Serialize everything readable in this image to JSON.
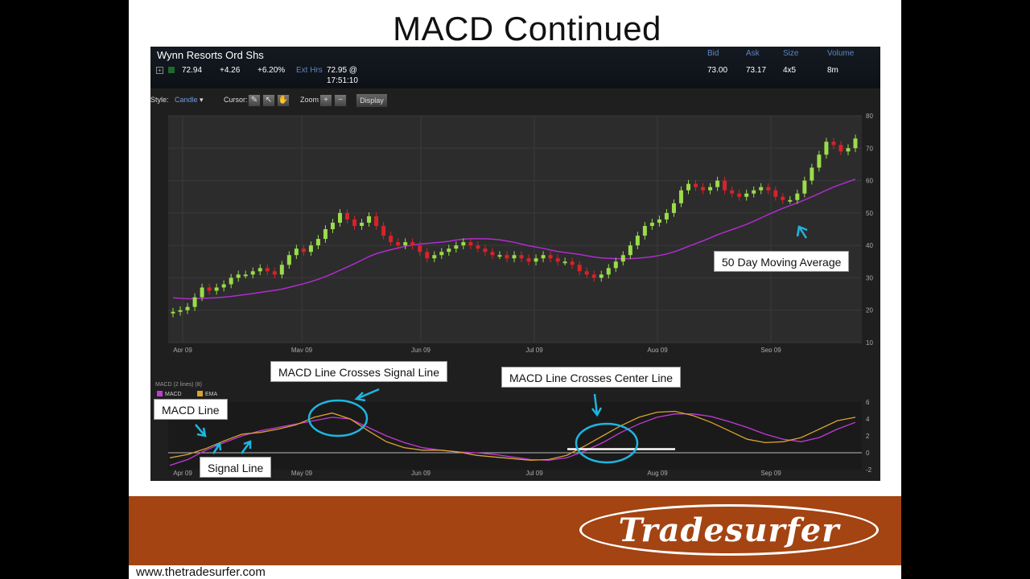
{
  "slide": {
    "title": "MACD Continued",
    "url": "www.thetradesurfer.com",
    "logo_text": "Tradesurfer"
  },
  "quote": {
    "name": "Wynn Resorts Ord Shs",
    "last": "72.94",
    "change": "+4.26",
    "change_pct": "+6.20%",
    "ext_label": "Ext Hrs",
    "ext_price": "72.95 @",
    "ext_time": "17:51:10",
    "headers": {
      "bid": "Bid",
      "ask": "Ask",
      "size": "Size",
      "volume": "Volume"
    },
    "values": {
      "bid": "73.00",
      "ask": "73.17",
      "size": "4x5",
      "volume": "8m"
    },
    "expand_icon": "plus-box-icon"
  },
  "toolbar": {
    "style_label": "Style:",
    "style_value": "Candle",
    "cursor_label": "Cursor:",
    "zoom_label": "Zoom:",
    "zoom_in": "+",
    "zoom_out": "−",
    "display_label": "Display"
  },
  "callouts": {
    "ma50": "50 Day Moving Average",
    "cross_signal": "MACD Line Crosses Signal Line",
    "cross_center": "MACD Line Crosses Center Line",
    "macd_line": "MACD Line",
    "signal_line": "Signal Line"
  },
  "colors": {
    "up": "#9bdc4a",
    "down": "#d6232a",
    "ma": "#b02bd0",
    "macd": "#c33ad6",
    "ema": "#d8a32e",
    "annotation": "#1fb5e0"
  },
  "chart_data": [
    {
      "type": "candlestick",
      "title": "",
      "x_ticks": [
        "Apr 09",
        "May 09",
        "Jun 09",
        "Jul 09",
        "Aug 09",
        "Sep 09"
      ],
      "ylim": [
        10,
        80
      ],
      "y_ticks": [
        10,
        20,
        30,
        40,
        50,
        60,
        70,
        80
      ],
      "close": [
        19.5,
        20,
        21,
        24,
        27,
        26,
        27,
        28,
        30,
        31,
        31,
        32,
        33,
        32,
        31,
        34,
        37,
        39,
        38,
        40,
        42,
        45,
        47,
        50,
        48,
        46,
        47,
        49,
        46,
        43,
        41,
        40,
        41,
        40,
        38,
        36,
        37,
        38,
        39,
        40,
        41,
        40,
        39,
        38,
        37,
        37,
        36,
        37,
        36,
        35,
        36,
        37,
        36,
        35,
        35,
        34,
        32,
        31,
        30,
        31,
        33,
        35,
        37,
        40,
        43,
        46,
        47,
        48,
        50,
        53,
        57,
        59,
        58,
        57,
        58,
        60,
        57,
        56,
        55,
        56,
        57,
        58,
        57,
        55,
        54,
        54,
        56,
        60,
        64,
        68,
        72,
        71,
        69,
        70,
        73
      ],
      "ma_series_name": "50 Day Moving Average"
    },
    {
      "type": "line",
      "title": "MACD (2 lines) (8)",
      "legend": [
        "MACD",
        "EMA"
      ],
      "x_ticks": [
        "Apr 09",
        "May 09",
        "Jun 09",
        "Jul 09",
        "Aug 09",
        "Sep 09"
      ],
      "ylim": [
        -2,
        6
      ],
      "y_ticks": [
        -2,
        0,
        2,
        4,
        6
      ],
      "series": [
        {
          "name": "MACD",
          "values": [
            -1.5,
            -0.8,
            0.3,
            1.2,
            2.0,
            2.6,
            3.0,
            3.4,
            3.8,
            4.2,
            4.0,
            3.0,
            2.0,
            1.2,
            0.6,
            0.3,
            0.1,
            0,
            -0.2,
            -0.5,
            -0.8,
            -0.9,
            -0.6,
            0.2,
            1.2,
            2.4,
            3.4,
            4.2,
            4.6,
            4.6,
            4.3,
            3.7,
            3.0,
            2.2,
            1.6,
            1.3,
            1.8,
            2.8,
            3.6
          ]
        },
        {
          "name": "EMA",
          "values": [
            -0.6,
            -0.2,
            0.5,
            1.4,
            2.2,
            2.4,
            2.8,
            3.3,
            4.2,
            4.7,
            4.0,
            2.6,
            1.3,
            0.6,
            0.3,
            0.3,
            0.1,
            -0.3,
            -0.5,
            -0.7,
            -0.9,
            -0.8,
            -0.3,
            0.8,
            2.0,
            3.2,
            4.2,
            4.8,
            4.9,
            4.4,
            3.6,
            2.6,
            1.6,
            1.2,
            1.3,
            1.8,
            2.8,
            3.8,
            4.2
          ]
        }
      ]
    }
  ]
}
